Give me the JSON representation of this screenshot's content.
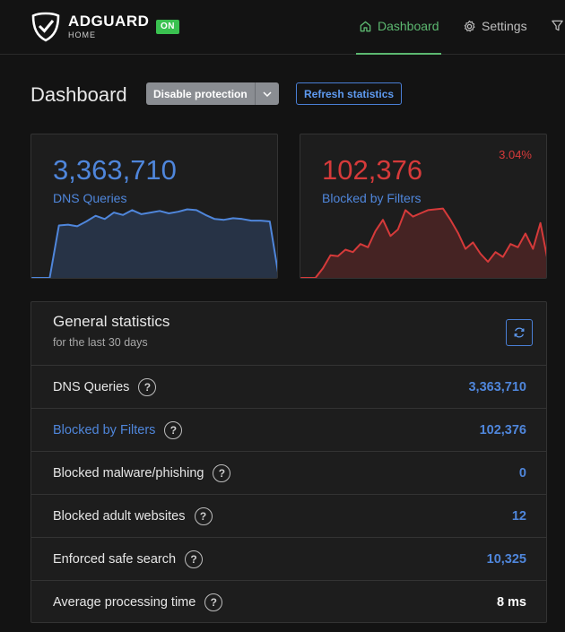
{
  "brand": {
    "name": "ADGUARD",
    "sub": "HOME",
    "status": "ON"
  },
  "nav": {
    "dashboard": "Dashboard",
    "settings": "Settings"
  },
  "page": {
    "title": "Dashboard",
    "disable_label": "Disable protection",
    "refresh_label": "Refresh statistics"
  },
  "cards": {
    "queries": {
      "value": "3,363,710",
      "label": "DNS Queries"
    },
    "blocked": {
      "value": "102,376",
      "label": "Blocked by Filters",
      "percent": "3.04%"
    }
  },
  "chart_data": [
    {
      "type": "area",
      "series": [
        {
          "values": [
            0,
            0,
            0,
            65,
            66,
            64,
            70,
            77,
            73,
            81,
            78,
            84,
            79,
            81,
            83,
            80,
            82,
            85,
            84,
            78,
            73,
            72,
            74,
            73,
            71,
            71,
            70,
            0
          ]
        }
      ],
      "color": "#4f86db"
    },
    {
      "type": "area",
      "series": [
        {
          "values": [
            0,
            0,
            0,
            12,
            28,
            27,
            35,
            32,
            42,
            38,
            58,
            72,
            52,
            60,
            84,
            76,
            80,
            84,
            85,
            86,
            72,
            56,
            36,
            44,
            30,
            20,
            32,
            26,
            42,
            38,
            55,
            36,
            68,
            20
          ]
        }
      ],
      "color": "#d63a3a"
    }
  ],
  "general": {
    "title": "General statistics",
    "subtitle": "for the last 30 days",
    "rows": [
      {
        "label": "DNS Queries",
        "value": "3,363,710"
      },
      {
        "label": "Blocked by Filters",
        "value": "102,376"
      },
      {
        "label": "Blocked malware/phishing",
        "value": "0"
      },
      {
        "label": "Blocked adult websites",
        "value": "12"
      },
      {
        "label": "Enforced safe search",
        "value": "10,325"
      },
      {
        "label": "Average processing time",
        "value": "8 ms"
      }
    ],
    "help_glyph": "?"
  },
  "colors": {
    "accent_green": "#5cb870",
    "accent_blue": "#4f86db",
    "accent_red": "#d63a3a",
    "badge_green": "#3ac150",
    "background": "#131313",
    "card": "#1d1d1d"
  }
}
